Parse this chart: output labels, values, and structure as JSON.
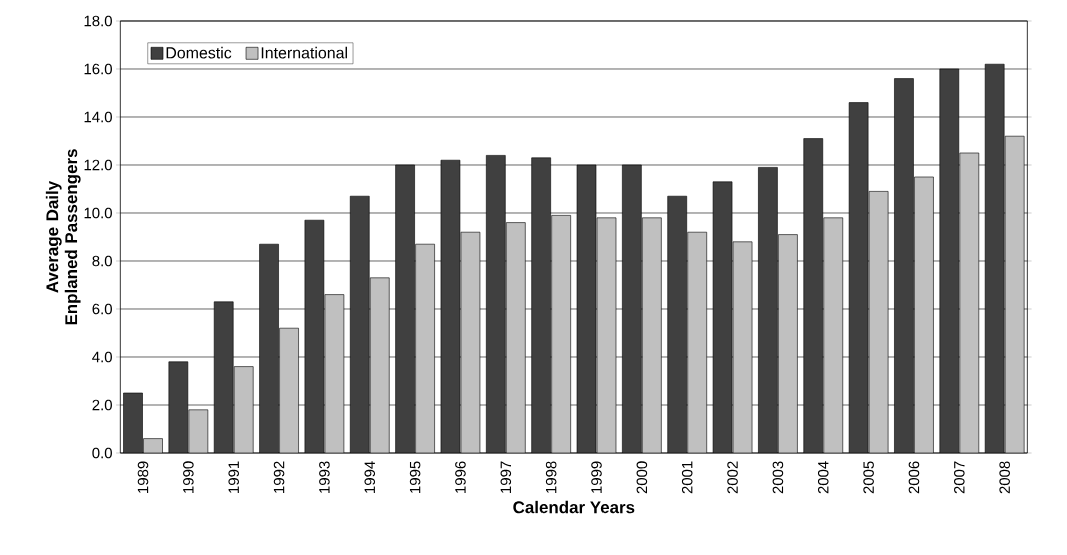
{
  "chart_data": {
    "type": "bar",
    "xlabel": "Calendar Years",
    "ylabel": "Average Daily Enplaned Passengers",
    "categories": [
      "1989",
      "1990",
      "1991",
      "1992",
      "1993",
      "1994",
      "1995",
      "1996",
      "1997",
      "1998",
      "1999",
      "2000",
      "2001",
      "2002",
      "2003",
      "2004",
      "2005",
      "2006",
      "2007",
      "2008"
    ],
    "series": [
      {
        "name": "Domestic",
        "color": "#404040",
        "values": [
          2.5,
          3.8,
          6.3,
          8.7,
          9.7,
          10.7,
          12.0,
          12.2,
          12.4,
          12.3,
          12.0,
          12.0,
          10.7,
          11.3,
          11.9,
          13.1,
          14.6,
          15.6,
          16.0,
          16.2
        ]
      },
      {
        "name": "International",
        "color": "#c0c0c0",
        "values": [
          0.6,
          1.8,
          3.6,
          5.2,
          6.6,
          7.3,
          8.7,
          9.2,
          9.6,
          9.9,
          9.8,
          9.8,
          9.2,
          8.8,
          9.1,
          9.8,
          10.9,
          11.5,
          12.5,
          13.2
        ]
      }
    ],
    "ylim": [
      0,
      18
    ],
    "yticks": [
      {
        "value": 0,
        "label": "0.0"
      },
      {
        "value": 2,
        "label": "2.0"
      },
      {
        "value": 4,
        "label": "4.0"
      },
      {
        "value": 6,
        "label": "6.0"
      },
      {
        "value": 8,
        "label": "8.0"
      },
      {
        "value": 10,
        "label": "10.0"
      },
      {
        "value": 12,
        "label": "12.0"
      },
      {
        "value": 14,
        "label": "14.0"
      },
      {
        "value": 16,
        "label": "16.0"
      },
      {
        "value": 18,
        "label": "18.0"
      }
    ],
    "grid": "y",
    "legend": "top left"
  }
}
